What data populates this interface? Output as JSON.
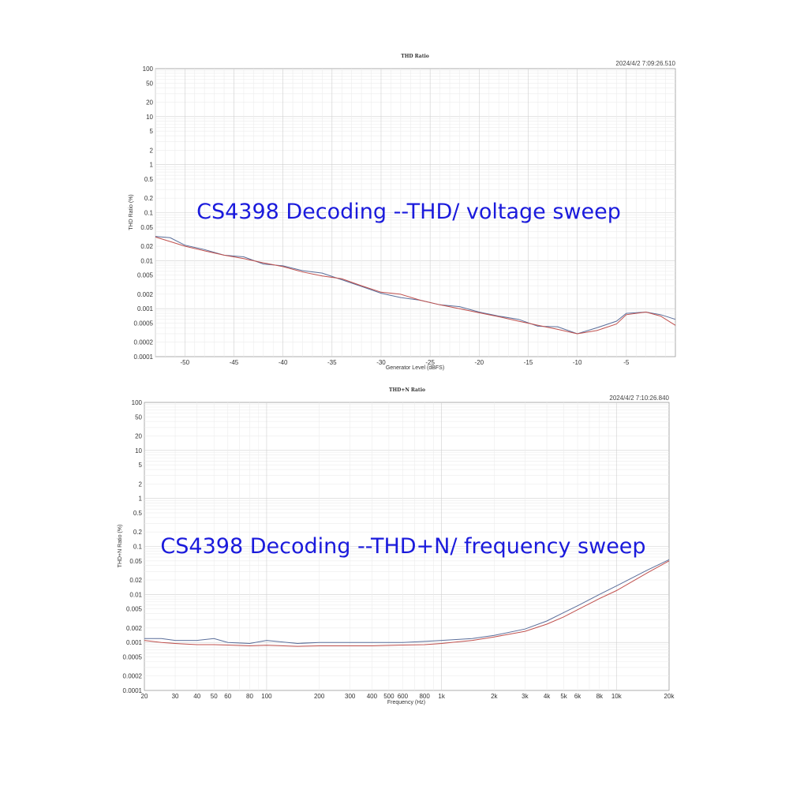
{
  "chart_data": [
    {
      "type": "line",
      "title": "THD Ratio",
      "timestamp": "2024/4/2 7:09:26.510",
      "overlay_text": "CS4398 Decoding --THD/ voltage sweep",
      "xlabel": "Generator Level (dBFS)",
      "ylabel": "THD Ratio (%)",
      "xscale": "linear",
      "yscale": "log",
      "xlim": [
        -53,
        0
      ],
      "ylim": [
        0.0001,
        100
      ],
      "x_ticks": [
        -50,
        -45,
        -40,
        -35,
        -30,
        -25,
        -20,
        -15,
        -10,
        -5
      ],
      "x_tick_labels": [
        "-50",
        "-45",
        "-40",
        "-35",
        "-30",
        "-25",
        "-20",
        "-15",
        "-10",
        "-5"
      ],
      "y_ticks": [
        100,
        50,
        20,
        10,
        5,
        2,
        1,
        0.5,
        0.2,
        0.1,
        0.05,
        0.02,
        0.01,
        0.005,
        0.002,
        0.001,
        0.0005,
        0.0002,
        0.0001
      ],
      "y_tick_labels": [
        "100",
        "50",
        "20",
        "10",
        "5",
        "2",
        "1",
        "0.5",
        "0.2",
        "0.1",
        "0.05",
        "0.02",
        "0.01",
        "0.005",
        "0.002",
        "0.001",
        "0.0005",
        "0.0002",
        "0.0001"
      ],
      "grid": true,
      "series": [
        {
          "color": "#5a6e9a",
          "x": [
            -53,
            -51.5,
            -50,
            -48,
            -46,
            -44,
            -42,
            -40,
            -38,
            -36,
            -34,
            -32,
            -30,
            -28,
            -26,
            -24,
            -22,
            -20,
            -18,
            -16,
            -14,
            -12,
            -10,
            -8,
            -6,
            -5,
            -3,
            -1.5,
            0
          ],
          "y": [
            0.032,
            0.03,
            0.021,
            0.017,
            0.013,
            0.012,
            0.0085,
            0.0078,
            0.0062,
            0.0055,
            0.004,
            0.0029,
            0.0021,
            0.0017,
            0.0015,
            0.0012,
            0.0011,
            0.00085,
            0.0007,
            0.0006,
            0.00043,
            0.00042,
            0.0003,
            0.0004,
            0.00055,
            0.0008,
            0.00085,
            0.00075,
            0.0006
          ]
        },
        {
          "color": "#c0504d",
          "x": [
            -53,
            -51.5,
            -50,
            -48,
            -46,
            -44,
            -42,
            -40,
            -38,
            -36,
            -34,
            -32,
            -30,
            -28,
            -26,
            -24,
            -22,
            -20,
            -18,
            -16,
            -14,
            -12,
            -10,
            -8,
            -6,
            -5,
            -3,
            -1.5,
            0
          ],
          "y": [
            0.031,
            0.025,
            0.02,
            0.016,
            0.013,
            0.011,
            0.009,
            0.0075,
            0.0058,
            0.0048,
            0.0042,
            0.003,
            0.0022,
            0.002,
            0.0015,
            0.0012,
            0.001,
            0.00082,
            0.00068,
            0.00055,
            0.00045,
            0.00037,
            0.0003,
            0.00035,
            0.00048,
            0.00075,
            0.00085,
            0.0007,
            0.00045
          ]
        }
      ]
    },
    {
      "type": "line",
      "title": "THD+N Ratio",
      "timestamp": "2024/4/2 7:10:26.840",
      "overlay_text": "CS4398 Decoding --THD+N/ frequency sweep",
      "xlabel": "Frequency (Hz)",
      "ylabel": "THD+N Ratio (%)",
      "xscale": "log",
      "yscale": "log",
      "xlim": [
        20,
        20000
      ],
      "ylim": [
        0.0001,
        100
      ],
      "x_ticks": [
        20,
        30,
        40,
        50,
        60,
        80,
        100,
        200,
        300,
        400,
        500,
        600,
        800,
        1000,
        2000,
        3000,
        4000,
        5000,
        6000,
        8000,
        10000,
        20000
      ],
      "x_tick_labels": [
        "20",
        "30",
        "40",
        "50",
        "60",
        "80",
        "100",
        "200",
        "300",
        "400",
        "500",
        "600",
        "800",
        "1k",
        "2k",
        "3k",
        "4k",
        "5k",
        "6k",
        "8k",
        "10k",
        "20k"
      ],
      "y_ticks": [
        100,
        50,
        20,
        10,
        5,
        2,
        1,
        0.5,
        0.2,
        0.1,
        0.05,
        0.02,
        0.01,
        0.005,
        0.002,
        0.001,
        0.0005,
        0.0002,
        0.0001
      ],
      "y_tick_labels": [
        "100",
        "50",
        "20",
        "10",
        "5",
        "2",
        "1",
        "0.5",
        "0.2",
        "0.1",
        "0.05",
        "0.02",
        "0.01",
        "0.005",
        "0.002",
        "0.001",
        "0.0005",
        "0.0002",
        "0.0001"
      ],
      "grid": true,
      "series": [
        {
          "color": "#5a6e9a",
          "x": [
            20,
            25,
            30,
            40,
            50,
            60,
            80,
            100,
            150,
            200,
            300,
            400,
            600,
            800,
            1000,
            1500,
            2000,
            3000,
            4000,
            5000,
            6000,
            8000,
            10000,
            15000,
            20000
          ],
          "y": [
            0.0012,
            0.0012,
            0.0011,
            0.0011,
            0.0012,
            0.001,
            0.00095,
            0.0011,
            0.00095,
            0.001,
            0.001,
            0.001,
            0.001,
            0.00105,
            0.0011,
            0.0012,
            0.0014,
            0.0019,
            0.0028,
            0.0042,
            0.0058,
            0.01,
            0.015,
            0.032,
            0.053
          ]
        },
        {
          "color": "#c0504d",
          "x": [
            20,
            25,
            30,
            40,
            50,
            60,
            80,
            100,
            150,
            200,
            300,
            400,
            600,
            800,
            1000,
            1500,
            2000,
            3000,
            4000,
            5000,
            6000,
            8000,
            10000,
            15000,
            20000
          ],
          "y": [
            0.0011,
            0.001,
            0.00095,
            0.0009,
            0.0009,
            0.00088,
            0.00085,
            0.00087,
            0.00083,
            0.00085,
            0.00085,
            0.00085,
            0.00088,
            0.0009,
            0.00095,
            0.0011,
            0.0013,
            0.0017,
            0.0024,
            0.0034,
            0.0048,
            0.0082,
            0.012,
            0.028,
            0.05
          ]
        }
      ]
    }
  ]
}
